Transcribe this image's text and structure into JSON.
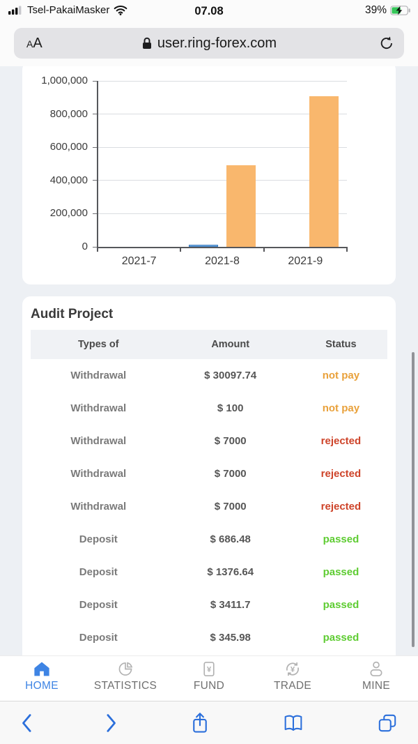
{
  "status_bar": {
    "carrier": "Tsel-PakaiMasker",
    "time": "07.08",
    "battery_percent": "39%",
    "signal_bars_filled": 3,
    "signal_bars_total": 4,
    "battery_charging": true,
    "battery_fill_color": "#35c759"
  },
  "address_bar": {
    "reader_label_small": "A",
    "reader_label_large": "A",
    "url": "user.ring-forex.com",
    "secure": true
  },
  "chart_data": {
    "type": "bar",
    "title": "",
    "xlabel": "",
    "ylabel": "",
    "categories": [
      "2021-7",
      "2021-8",
      "2021-9"
    ],
    "series": [
      {
        "name": "series-blue",
        "color": "#7db4e6",
        "border_color": "#3a7bbf",
        "values": [
          0,
          12000,
          0
        ]
      },
      {
        "name": "series-orange",
        "color": "#f9b76d",
        "border_color": "",
        "values": [
          0,
          492000,
          908000
        ]
      }
    ],
    "ylim": [
      0,
      1000000
    ],
    "yticks": [
      0,
      200000,
      400000,
      600000,
      800000,
      1000000
    ],
    "ytick_labels": [
      "0",
      "200,000",
      "400,000",
      "600,000",
      "800,000",
      "1,000,000"
    ],
    "grid": true,
    "legend": false
  },
  "audit": {
    "title": "Audit Project",
    "columns": [
      "Types of",
      "Amount",
      "Status"
    ],
    "rows": [
      {
        "type": "Withdrawal",
        "amount": "$ 30097.74",
        "status": "not pay",
        "status_key": "not_pay"
      },
      {
        "type": "Withdrawal",
        "amount": "$ 100",
        "status": "not pay",
        "status_key": "not_pay"
      },
      {
        "type": "Withdrawal",
        "amount": "$ 7000",
        "status": "rejected",
        "status_key": "rejected"
      },
      {
        "type": "Withdrawal",
        "amount": "$ 7000",
        "status": "rejected",
        "status_key": "rejected"
      },
      {
        "type": "Withdrawal",
        "amount": "$ 7000",
        "status": "rejected",
        "status_key": "rejected"
      },
      {
        "type": "Deposit",
        "amount": "$ 686.48",
        "status": "passed",
        "status_key": "passed"
      },
      {
        "type": "Deposit",
        "amount": "$ 1376.64",
        "status": "passed",
        "status_key": "passed"
      },
      {
        "type": "Deposit",
        "amount": "$ 3411.7",
        "status": "passed",
        "status_key": "passed"
      },
      {
        "type": "Deposit",
        "amount": "$ 345.98",
        "status": "passed",
        "status_key": "passed"
      }
    ],
    "status_colors": {
      "not_pay": "#E9A13B",
      "rejected": "#CE442A",
      "passed": "#5ECC32"
    }
  },
  "bottom_nav": {
    "active_color": "#3e84e4",
    "inactive_color": "#6f6f6f",
    "items": [
      {
        "label": "HOME",
        "icon": "home-icon",
        "active": true
      },
      {
        "label": "STATISTICS",
        "icon": "statistics-icon",
        "active": false
      },
      {
        "label": "FUND",
        "icon": "fund-icon",
        "active": false
      },
      {
        "label": "TRADE",
        "icon": "trade-icon",
        "active": false
      },
      {
        "label": "MINE",
        "icon": "mine-icon",
        "active": false
      }
    ]
  },
  "browser_toolbar": {
    "icon_color": "#2b6fdb",
    "buttons": [
      "back",
      "forward",
      "share",
      "bookmarks",
      "tabs"
    ]
  }
}
